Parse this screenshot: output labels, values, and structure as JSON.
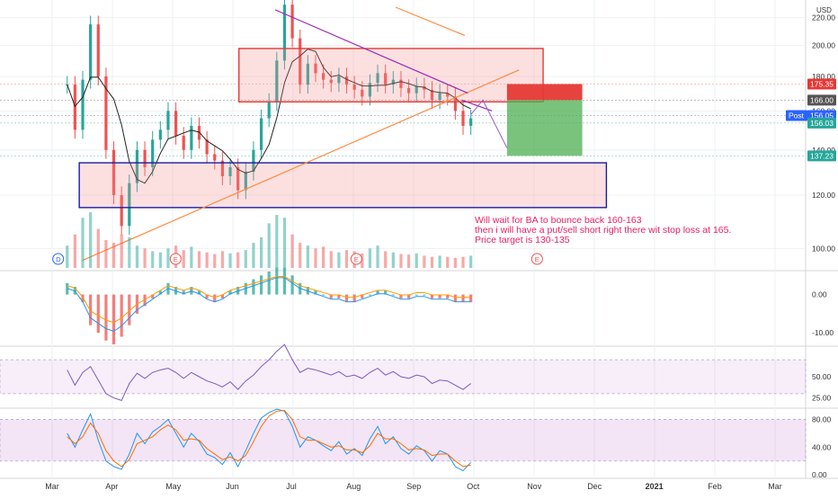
{
  "chart_data": {
    "type": "candlestick",
    "currency_label": "USD",
    "grid": true,
    "x_ticks": [
      "Mar",
      "Apr",
      "May",
      "Jun",
      "Jul",
      "Aug",
      "Sep",
      "Oct",
      "Nov",
      "Dec",
      "2021",
      "Feb",
      "Mar"
    ],
    "price_axis": {
      "scale": "log",
      "range": [
        93,
        228
      ],
      "ticks": [
        "100.00",
        "120.00",
        "140.00",
        "160.00",
        "180.00",
        "200.00",
        "220.00"
      ],
      "tick_values": [
        100,
        120,
        140,
        160,
        180,
        200,
        220
      ]
    },
    "price_markers": [
      {
        "label": "175.35",
        "value": 175.35,
        "color": "#e53935"
      },
      {
        "label": "166.00",
        "value": 166.0,
        "color": "#555555"
      },
      {
        "label": "Post",
        "value": 157.5,
        "color": "#2962ff"
      },
      {
        "label": "156.05",
        "value": 157.5,
        "color": "#2962ff"
      },
      {
        "label": "156.03",
        "value": 153.5,
        "color": "#26a69a"
      },
      {
        "label": "137.23",
        "value": 137.23,
        "color": "#26a69a"
      }
    ],
    "event_badges": [
      {
        "label": "D",
        "month": 0.1
      },
      {
        "label": "E",
        "month": 2.05
      },
      {
        "label": "E",
        "month": 5.05
      },
      {
        "label": "E",
        "month": 8.05
      }
    ],
    "annotation": {
      "lines": [
        "Will wait for BA to bounce back 160-163",
        "then i will have a put/sell short right there wit stop loss at 165.",
        "Price target is 130-135"
      ],
      "color": "#e91e63"
    },
    "zones": {
      "upper_range": {
        "start": 3.1,
        "end": 8.15,
        "low": 165,
        "high": 198
      },
      "lower_range": {
        "start": 0.45,
        "end": 9.2,
        "low": 115,
        "high": 134
      },
      "stop_zone": {
        "start": 7.55,
        "end": 8.8,
        "low": 166.0,
        "high": 175.35
      },
      "target_zone": {
        "start": 7.55,
        "end": 8.8,
        "low": 137.23,
        "high": 166.0
      }
    },
    "trendlines": [
      {
        "name": "rising",
        "from": [
          0.5,
          96
        ],
        "to": [
          7.75,
          184
        ],
        "color": "#ff8a3d"
      },
      {
        "name": "falling",
        "from": [
          3.7,
          226
        ],
        "to": [
          6.9,
          170
        ],
        "color": "#9c27b0"
      },
      {
        "name": "short-orange",
        "from": [
          5.7,
          228
        ],
        "to": [
          6.85,
          207
        ],
        "color": "#ff8a3d"
      },
      {
        "name": "projection",
        "from": [
          6.8,
          166
        ],
        "to": [
          7.3,
          160
        ],
        "color": "#9c27b0",
        "dashed": false
      }
    ],
    "projection_path": [
      [
        6.95,
        158
      ],
      [
        7.15,
        166
      ],
      [
        7.55,
        141
      ]
    ],
    "macd_axis": {
      "ticks": [
        "0.00",
        "-10.00"
      ],
      "tick_values": [
        0,
        -10
      ],
      "range": [
        -13,
        6
      ]
    },
    "rsi_axis": {
      "ticks": [
        "50.00",
        "25.00"
      ],
      "tick_values": [
        50,
        25
      ],
      "range": [
        15,
        85
      ],
      "band": [
        30,
        70
      ]
    },
    "stoch_axis": {
      "ticks": [
        "80.00",
        "40.00",
        "0.00"
      ],
      "tick_values": [
        80,
        40,
        0
      ],
      "range": [
        -5,
        95
      ],
      "band": [
        20,
        80
      ]
    },
    "series": [
      {
        "name": "price",
        "values": [
          175,
          150,
          178,
          215,
          180,
          140,
          120,
          108,
          125,
          140,
          132,
          145,
          150,
          160,
          147,
          140,
          152,
          145,
          138,
          135,
          128,
          132,
          122,
          130,
          140,
          156,
          165,
          190,
          230,
          205,
          175,
          188,
          182,
          178,
          176,
          180,
          175,
          172,
          168,
          176,
          182,
          175,
          178,
          173,
          170,
          174,
          172,
          166,
          170,
          168,
          160,
          152,
          156
        ]
      },
      {
        "name": "rsi",
        "values": [
          58,
          40,
          55,
          62,
          46,
          30,
          25,
          22,
          42,
          54,
          48,
          55,
          58,
          60,
          55,
          48,
          55,
          50,
          45,
          42,
          38,
          44,
          35,
          45,
          52,
          62,
          70,
          80,
          88,
          70,
          55,
          60,
          58,
          55,
          52,
          56,
          50,
          52,
          48,
          55,
          60,
          52,
          56,
          50,
          48,
          52,
          50,
          42,
          46,
          45,
          40,
          35,
          42
        ]
      },
      {
        "name": "stoch_k",
        "values": [
          60,
          40,
          65,
          88,
          50,
          20,
          12,
          8,
          30,
          60,
          45,
          62,
          70,
          80,
          60,
          40,
          60,
          48,
          30,
          25,
          15,
          32,
          12,
          35,
          60,
          82,
          90,
          95,
          92,
          70,
          40,
          55,
          50,
          42,
          35,
          48,
          30,
          38,
          28,
          52,
          70,
          45,
          55,
          38,
          30,
          42,
          35,
          20,
          35,
          30,
          12,
          6,
          18
        ]
      },
      {
        "name": "stoch_d",
        "values": [
          55,
          45,
          55,
          75,
          60,
          35,
          20,
          12,
          22,
          45,
          50,
          55,
          65,
          72,
          65,
          50,
          52,
          50,
          38,
          30,
          22,
          26,
          20,
          28,
          48,
          70,
          85,
          92,
          93,
          80,
          55,
          50,
          50,
          45,
          40,
          42,
          36,
          36,
          32,
          42,
          60,
          52,
          52,
          45,
          36,
          38,
          36,
          28,
          30,
          30,
          20,
          12,
          14
        ]
      },
      {
        "name": "macd_hist",
        "values": [
          3,
          2,
          -2,
          -8,
          -10,
          -12,
          -13,
          -11,
          -8,
          -5,
          -3,
          -1,
          1,
          3,
          2,
          1,
          2,
          1,
          -1,
          -2,
          -1,
          1,
          2,
          3,
          4,
          5,
          6,
          7,
          7,
          5,
          3,
          2,
          1,
          0,
          -1,
          -1,
          -2,
          -2,
          -1,
          0,
          1,
          1,
          0,
          -1,
          -1,
          0,
          0,
          -1,
          -1,
          -1,
          -2,
          -2,
          -2
        ]
      },
      {
        "name": "volume",
        "values": [
          40,
          60,
          90,
          100,
          70,
          50,
          45,
          60,
          55,
          40,
          35,
          30,
          28,
          35,
          40,
          32,
          38,
          30,
          28,
          25,
          30,
          26,
          28,
          32,
          45,
          55,
          80,
          95,
          90,
          60,
          45,
          40,
          35,
          38,
          30,
          28,
          32,
          30,
          26,
          35,
          40,
          30,
          28,
          25,
          24,
          26,
          22,
          20,
          22,
          20,
          18,
          20,
          22
        ]
      }
    ]
  },
  "symbol_info": {
    "post_label": "Post"
  }
}
